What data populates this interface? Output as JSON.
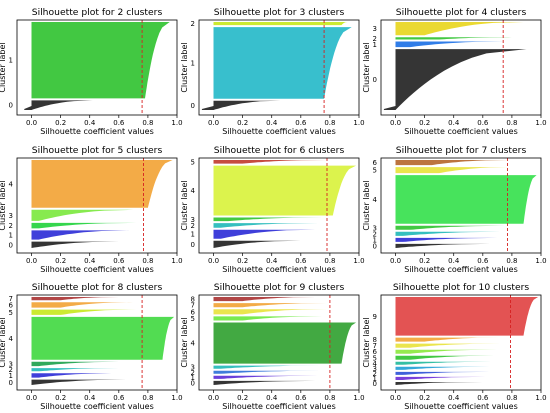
{
  "figure_title": "",
  "chart_data": [
    {
      "type": "silhouette",
      "title": "Silhouette plot for 2 clusters",
      "xlabel": "Silhouette coefficient values",
      "ylabel": "Cluster label",
      "xlim": [
        -0.1,
        1.0
      ],
      "xticks": [
        "0.0",
        "0.2",
        "0.4",
        "0.6",
        "0.8",
        "1.0"
      ],
      "average_score": 0.76,
      "grid": false,
      "clusters": [
        {
          "label": "0",
          "color": "#1f1f1f",
          "size": 9,
          "max": 0.42,
          "min": -0.05
        },
        {
          "label": "1",
          "color": "#2ec22e",
          "size": 72,
          "max": 0.95,
          "min": 0.78
        }
      ]
    },
    {
      "type": "silhouette",
      "title": "Silhouette plot for 3 clusters",
      "xlabel": "Silhouette coefficient values",
      "ylabel": "Cluster label",
      "xlim": [
        -0.1,
        1.0
      ],
      "xticks": [
        "0.0",
        "0.2",
        "0.4",
        "0.6",
        "0.8",
        "1.0"
      ],
      "average_score": 0.76,
      "grid": false,
      "clusters": [
        {
          "label": "0",
          "color": "#1f1f1f",
          "size": 9,
          "max": 0.46,
          "min": -0.08
        },
        {
          "label": "1",
          "color": "#22b8c8",
          "size": 69,
          "max": 0.95,
          "min": 0.76
        },
        {
          "label": "2",
          "color": "#c6e81c",
          "size": 3,
          "max": 0.92,
          "min": 0.88
        }
      ]
    },
    {
      "type": "silhouette",
      "title": "Silhouette plot for 4 clusters",
      "xlabel": "Silhouette coefficient values",
      "ylabel": "Cluster label",
      "xlim": [
        -0.1,
        1.0
      ],
      "xticks": [
        "0.0",
        "0.2",
        "0.4",
        "0.6",
        "0.8",
        "1.0"
      ],
      "average_score": 0.74,
      "grid": false,
      "clusters": [
        {
          "label": "0",
          "color": "#1f1f1f",
          "size": 55,
          "max": 0.9,
          "min": -0.08
        },
        {
          "label": "1",
          "color": "#1a6fe6",
          "size": 5,
          "max": 0.75,
          "min": 0.1
        },
        {
          "label": "2",
          "color": "#2ec22e",
          "size": 2,
          "max": 0.8,
          "min": 0.3
        },
        {
          "label": "3",
          "color": "#e8d51c",
          "size": 12,
          "max": 0.88,
          "min": 0.2
        }
      ]
    },
    {
      "type": "silhouette",
      "title": "Silhouette plot for 5 clusters",
      "xlabel": "Silhouette coefficient values",
      "ylabel": "Cluster label",
      "xlim": [
        -0.1,
        1.0
      ],
      "xticks": [
        "0.0",
        "0.2",
        "0.4",
        "0.6",
        "0.8",
        "1.0"
      ],
      "average_score": 0.77,
      "grid": false,
      "clusters": [
        {
          "label": "0",
          "color": "#1f1f1f",
          "size": 7,
          "max": 0.6,
          "min": 0.0
        },
        {
          "label": "1",
          "color": "#2a2ad6",
          "size": 10,
          "max": 0.67,
          "min": 0.05
        },
        {
          "label": "2",
          "color": "#1fd13a",
          "size": 6,
          "max": 0.72,
          "min": 0.05
        },
        {
          "label": "3",
          "color": "#7ae83c",
          "size": 12,
          "max": 0.7,
          "min": 0.05
        },
        {
          "label": "4",
          "color": "#f2a233",
          "size": 52,
          "max": 0.97,
          "min": 0.8
        }
      ]
    },
    {
      "type": "silhouette",
      "title": "Silhouette plot for 6 clusters",
      "xlabel": "Silhouette coefficient values",
      "ylabel": "Cluster label",
      "xlim": [
        -0.1,
        1.0
      ],
      "xticks": [
        "0.0",
        "0.2",
        "0.4",
        "0.6",
        "0.8",
        "1.0"
      ],
      "average_score": 0.78,
      "grid": false,
      "clusters": [
        {
          "label": "0",
          "color": "#1f1f1f",
          "size": 8,
          "max": 0.6,
          "min": 0.0
        },
        {
          "label": "1",
          "color": "#2a2ad6",
          "size": 10,
          "max": 0.7,
          "min": 0.05
        },
        {
          "label": "2",
          "color": "#1fb8b8",
          "size": 5,
          "max": 0.72,
          "min": 0.05
        },
        {
          "label": "3",
          "color": "#2ec22e",
          "size": 4,
          "max": 0.75,
          "min": 0.1
        },
        {
          "label": "4",
          "color": "#d8f23a",
          "size": 55,
          "max": 0.98,
          "min": 0.82
        },
        {
          "label": "5",
          "color": "#c0392b",
          "size": 4,
          "max": 0.78,
          "min": 0.2
        }
      ]
    },
    {
      "type": "silhouette",
      "title": "Silhouette plot for 7 clusters",
      "xlabel": "Silhouette coefficient values",
      "ylabel": "Cluster label",
      "xlim": [
        -0.1,
        1.0
      ],
      "xticks": [
        "0.0",
        "0.2",
        "0.4",
        "0.6",
        "0.8",
        "1.0"
      ],
      "average_score": 0.77,
      "grid": false,
      "clusters": [
        {
          "label": "0",
          "color": "#1f1f1f",
          "size": 4,
          "max": 0.65,
          "min": 0.0
        },
        {
          "label": "1",
          "color": "#2a2ad6",
          "size": 4,
          "max": 0.7,
          "min": 0.05
        },
        {
          "label": "2",
          "color": "#1fb8b8",
          "size": 4,
          "max": 0.72,
          "min": 0.05
        },
        {
          "label": "3",
          "color": "#2ec22e",
          "size": 4,
          "max": 0.75,
          "min": 0.1
        },
        {
          "label": "4",
          "color": "#33e04a",
          "size": 48,
          "max": 0.97,
          "min": 0.88
        },
        {
          "label": "5",
          "color": "#e8e23a",
          "size": 6,
          "max": 0.8,
          "min": 0.3
        },
        {
          "label": "6",
          "color": "#b5652a",
          "size": 5,
          "max": 0.78,
          "min": 0.25
        }
      ]
    },
    {
      "type": "silhouette",
      "title": "Silhouette plot for 8 clusters",
      "xlabel": "Silhouette coefficient values",
      "ylabel": "Cluster label",
      "xlim": [
        -0.1,
        1.0
      ],
      "xticks": [
        "0.0",
        "0.2",
        "0.4",
        "0.6",
        "0.8",
        "1.0"
      ],
      "average_score": 0.76,
      "grid": false,
      "clusters": [
        {
          "label": "0",
          "color": "#1f1f1f",
          "size": 5,
          "max": 0.65,
          "min": 0.0
        },
        {
          "label": "1",
          "color": "#2a2ad6",
          "size": 4,
          "max": 0.55,
          "min": 0.05
        },
        {
          "label": "2",
          "color": "#1fb8b8",
          "size": 3,
          "max": 0.6,
          "min": 0.05
        },
        {
          "label": "3",
          "color": "#1aa04a",
          "size": 4,
          "max": 0.6,
          "min": 0.05
        },
        {
          "label": "4",
          "color": "#3fd83f",
          "size": 40,
          "max": 0.98,
          "min": 0.9
        },
        {
          "label": "5",
          "color": "#c6e81c",
          "size": 5,
          "max": 0.72,
          "min": 0.2
        },
        {
          "label": "6",
          "color": "#f2a233",
          "size": 5,
          "max": 0.7,
          "min": 0.2
        },
        {
          "label": "7",
          "color": "#a83232",
          "size": 3,
          "max": 0.6,
          "min": 0.2
        }
      ]
    },
    {
      "type": "silhouette",
      "title": "Silhouette plot for 9 clusters",
      "xlabel": "Silhouette coefficient values",
      "ylabel": "Cluster label",
      "xlim": [
        -0.1,
        1.0
      ],
      "xticks": [
        "0.0",
        "0.2",
        "0.4",
        "0.6",
        "0.8",
        "1.0"
      ],
      "average_score": 0.8,
      "grid": false,
      "clusters": [
        {
          "label": "0",
          "color": "#1f1f1f",
          "size": 4,
          "max": 0.7,
          "min": 0.0
        },
        {
          "label": "1",
          "color": "#5a2ad6",
          "size": 3,
          "max": 0.72,
          "min": 0.05
        },
        {
          "label": "2",
          "color": "#2a6fd6",
          "size": 3,
          "max": 0.74,
          "min": 0.05
        },
        {
          "label": "3",
          "color": "#1fb8b8",
          "size": 3,
          "max": 0.74,
          "min": 0.05
        },
        {
          "label": "4",
          "color": "#2ea02e",
          "size": 40,
          "max": 0.98,
          "min": 0.88
        },
        {
          "label": "5",
          "color": "#6ae83c",
          "size": 4,
          "max": 0.75,
          "min": 0.2
        },
        {
          "label": "6",
          "color": "#e8e23a",
          "size": 5,
          "max": 0.78,
          "min": 0.2
        },
        {
          "label": "7",
          "color": "#f2a233",
          "size": 4,
          "max": 0.78,
          "min": 0.2
        },
        {
          "label": "8",
          "color": "#a83232",
          "size": 4,
          "max": 0.7,
          "min": 0.2
        }
      ]
    },
    {
      "type": "silhouette",
      "title": "Silhouette plot for 10 clusters",
      "xlabel": "Silhouette coefficient values",
      "ylabel": "Cluster label",
      "xlim": [
        -0.1,
        1.0
      ],
      "xticks": [
        "0.0",
        "0.2",
        "0.4",
        "0.6",
        "0.8",
        "1.0"
      ],
      "average_score": 0.79,
      "grid": false,
      "clusters": [
        {
          "label": "0",
          "color": "#1f1f1f",
          "size": 3,
          "max": 0.6,
          "min": 0.0
        },
        {
          "label": "1",
          "color": "#6a2ad6",
          "size": 3,
          "max": 0.62,
          "min": 0.05
        },
        {
          "label": "2",
          "color": "#2a4fd6",
          "size": 3,
          "max": 0.65,
          "min": 0.05
        },
        {
          "label": "3",
          "color": "#1f9fd6",
          "size": 3,
          "max": 0.65,
          "min": 0.05
        },
        {
          "label": "4",
          "color": "#1fb89a",
          "size": 3,
          "max": 0.66,
          "min": 0.05
        },
        {
          "label": "5",
          "color": "#2ec22e",
          "size": 4,
          "max": 0.68,
          "min": 0.1
        },
        {
          "label": "6",
          "color": "#8ae83c",
          "size": 4,
          "max": 0.7,
          "min": 0.1
        },
        {
          "label": "7",
          "color": "#e8e23a",
          "size": 4,
          "max": 0.72,
          "min": 0.1
        },
        {
          "label": "8",
          "color": "#f2a233",
          "size": 4,
          "max": 0.72,
          "min": 0.2
        },
        {
          "label": "9",
          "color": "#e04040",
          "size": 38,
          "max": 0.98,
          "min": 0.88
        }
      ]
    }
  ]
}
